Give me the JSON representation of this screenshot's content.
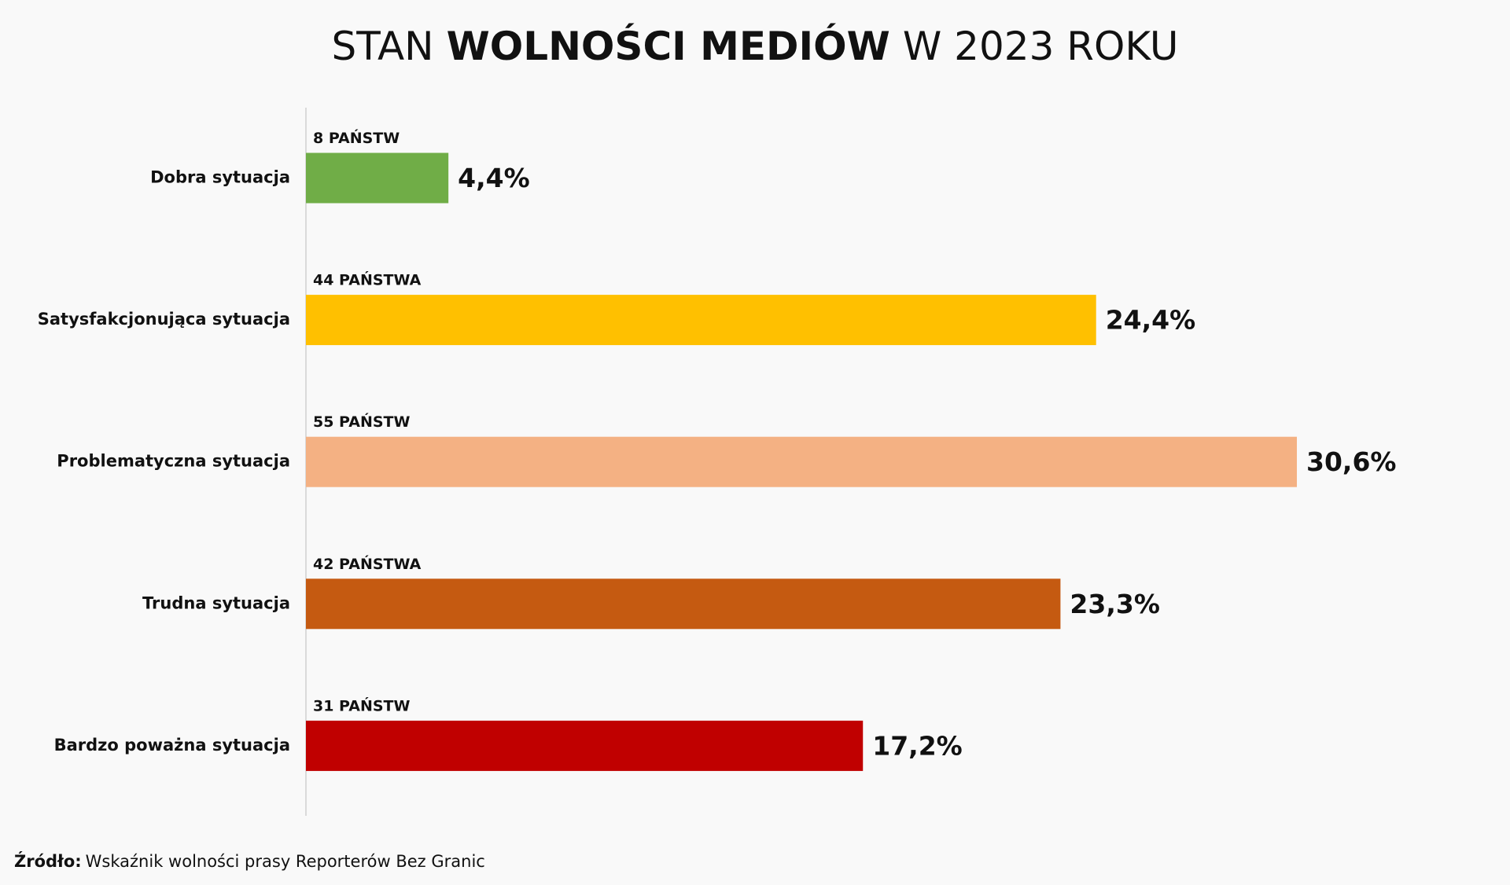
{
  "chart_data": {
    "type": "hbar",
    "title_parts": [
      {
        "text": "STAN",
        "bold": false
      },
      {
        "text": "WOLNOŚCI MEDIÓW",
        "bold": true
      },
      {
        "text": "W 2023 ROKU",
        "bold": false
      }
    ],
    "categories": [
      "Dobra sytuacja",
      "Satysfakcjonująca sytuacja",
      "Problematyczna sytuacja",
      "Trudna sytuacja",
      "Bardzo poważna sytuacja"
    ],
    "values": [
      4.4,
      24.4,
      30.6,
      23.3,
      17.2
    ],
    "value_labels": [
      "4,4%",
      "24,4%",
      "30,6%",
      "23,3%",
      "17,2%"
    ],
    "count_labels": [
      "8 PAŃSTW",
      "44 PAŃSTWA",
      "55 PAŃSTW",
      "42 PAŃSTWA",
      "31 PAŃSTW"
    ],
    "colors": [
      "#70ad47",
      "#ffc000",
      "#f4b183",
      "#c55a11",
      "#c00000"
    ],
    "source_label": "Źródło:",
    "source": "Wskaźnik wolności prasy Reporterów Bez Granic"
  }
}
